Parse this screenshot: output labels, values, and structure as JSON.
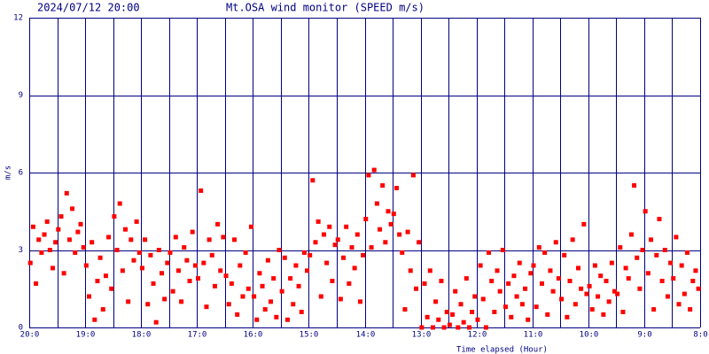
{
  "chart_data": {
    "type": "scatter",
    "timestamp": "2024/07/12 20:00",
    "title": "Mt.OSA wind monitor (SPEED m/s)",
    "x_label": "Time elapsed (Hour)",
    "y_label": "m/s",
    "color": "#ff0000",
    "grid": true,
    "xlim": [
      0,
      12
    ],
    "xticks": [
      {
        "value": 0,
        "label": "20:0"
      },
      {
        "value": 1,
        "label": "19:0"
      },
      {
        "value": 2,
        "label": "18:0"
      },
      {
        "value": 3,
        "label": "17:0"
      },
      {
        "value": 4,
        "label": "16:0"
      },
      {
        "value": 5,
        "label": "15:0"
      },
      {
        "value": 6,
        "label": "14:0"
      },
      {
        "value": 7,
        "label": "13:0"
      },
      {
        "value": 8,
        "label": "12:0"
      },
      {
        "value": 9,
        "label": "11:0"
      },
      {
        "value": 10,
        "label": "10:0"
      },
      {
        "value": 11,
        "label": "9:0"
      },
      {
        "value": 12,
        "label": "8:0"
      }
    ],
    "xgrid": [
      0.5,
      1.5,
      2.5,
      3.5,
      4.5,
      5.5,
      6.5,
      7.5,
      8.5,
      9.5,
      10.5,
      11.5
    ],
    "ylim": [
      0,
      12
    ],
    "yticks": [
      0,
      3,
      6,
      9,
      12
    ],
    "x": [
      0.02,
      0.07,
      0.12,
      0.17,
      0.22,
      0.27,
      0.32,
      0.37,
      0.42,
      0.47,
      0.52,
      0.57,
      0.62,
      0.67,
      0.72,
      0.77,
      0.82,
      0.87,
      0.92,
      0.97,
      1.02,
      1.07,
      1.12,
      1.17,
      1.22,
      1.27,
      1.32,
      1.37,
      1.42,
      1.47,
      1.52,
      1.57,
      1.62,
      1.67,
      1.72,
      1.77,
      1.82,
      1.87,
      1.92,
      1.97,
      2.02,
      2.07,
      2.12,
      2.17,
      2.22,
      2.27,
      2.32,
      2.37,
      2.42,
      2.47,
      2.52,
      2.57,
      2.62,
      2.67,
      2.72,
      2.77,
      2.82,
      2.87,
      2.92,
      2.97,
      3.02,
      3.07,
      3.12,
      3.17,
      3.22,
      3.27,
      3.32,
      3.37,
      3.42,
      3.47,
      3.52,
      3.57,
      3.62,
      3.67,
      3.72,
      3.77,
      3.82,
      3.87,
      3.92,
      3.97,
      4.02,
      4.07,
      4.12,
      4.17,
      4.22,
      4.27,
      4.32,
      4.37,
      4.42,
      4.47,
      4.52,
      4.57,
      4.62,
      4.67,
      4.72,
      4.77,
      4.82,
      4.87,
      4.92,
      4.97,
      5.02,
      5.07,
      5.12,
      5.17,
      5.22,
      5.27,
      5.32,
      5.37,
      5.42,
      5.47,
      5.52,
      5.57,
      5.62,
      5.67,
      5.72,
      5.77,
      5.82,
      5.87,
      5.92,
      5.97,
      6.02,
      6.07,
      6.12,
      6.17,
      6.22,
      6.27,
      6.32,
      6.37,
      6.42,
      6.47,
      6.52,
      6.57,
      6.62,
      6.67,
      6.72,
      6.77,
      6.82,
      6.87,
      6.92,
      6.97,
      7.02,
      7.07,
      7.12,
      7.17,
      7.22,
      7.27,
      7.32,
      7.37,
      7.42,
      7.47,
      7.52,
      7.57,
      7.62,
      7.67,
      7.72,
      7.77,
      7.82,
      7.87,
      7.92,
      7.97,
      8.02,
      8.07,
      8.12,
      8.17,
      8.22,
      8.27,
      8.32,
      8.37,
      8.42,
      8.47,
      8.52,
      8.57,
      8.62,
      8.67,
      8.72,
      8.77,
      8.82,
      8.87,
      8.92,
      8.97,
      9.02,
      9.07,
      9.12,
      9.17,
      9.22,
      9.27,
      9.32,
      9.37,
      9.42,
      9.47,
      9.52,
      9.57,
      9.62,
      9.67,
      9.72,
      9.77,
      9.82,
      9.87,
      9.92,
      9.97,
      10.02,
      10.07,
      10.12,
      10.17,
      10.22,
      10.27,
      10.32,
      10.37,
      10.42,
      10.47,
      10.52,
      10.57,
      10.62,
      10.67,
      10.72,
      10.77,
      10.82,
      10.87,
      10.92,
      10.97,
      11.02,
      11.07,
      11.12,
      11.17,
      11.22,
      11.27,
      11.32,
      11.37,
      11.42,
      11.47,
      11.52,
      11.57,
      11.62,
      11.67,
      11.72,
      11.77,
      11.82,
      11.87,
      11.92,
      11.97
    ],
    "values": [
      2.5,
      3.9,
      1.7,
      3.4,
      2.9,
      3.6,
      4.1,
      3.0,
      2.3,
      3.3,
      3.8,
      4.3,
      2.1,
      5.2,
      3.4,
      4.6,
      2.9,
      3.7,
      4.0,
      3.1,
      2.4,
      1.2,
      3.3,
      0.3,
      1.8,
      2.7,
      0.7,
      2.0,
      3.5,
      1.5,
      4.3,
      3.0,
      4.8,
      2.2,
      3.8,
      1.0,
      3.4,
      2.6,
      4.1,
      2.9,
      2.3,
      3.4,
      0.9,
      2.8,
      1.7,
      0.2,
      3.0,
      2.1,
      1.1,
      2.5,
      2.9,
      1.4,
      3.5,
      2.2,
      1.0,
      3.1,
      2.6,
      1.8,
      3.7,
      2.4,
      1.9,
      5.3,
      2.5,
      0.8,
      3.4,
      2.8,
      1.6,
      4.0,
      2.2,
      3.5,
      2.0,
      0.9,
      1.7,
      3.4,
      0.5,
      2.4,
      1.2,
      2.9,
      1.5,
      3.9,
      1.2,
      0.3,
      2.1,
      1.6,
      0.7,
      2.6,
      1.0,
      1.9,
      0.4,
      3.0,
      1.4,
      2.7,
      0.3,
      1.9,
      0.9,
      2.4,
      1.6,
      0.6,
      2.9,
      2.2,
      2.8,
      5.7,
      3.3,
      4.1,
      1.2,
      3.6,
      2.5,
      3.9,
      1.8,
      3.2,
      3.4,
      1.1,
      2.7,
      3.9,
      1.7,
      3.1,
      2.3,
      3.6,
      1.0,
      2.8,
      4.2,
      5.9,
      3.1,
      6.1,
      4.8,
      3.8,
      5.5,
      3.3,
      4.5,
      4.0,
      4.4,
      5.4,
      3.6,
      2.9,
      0.7,
      3.7,
      2.2,
      5.9,
      1.5,
      3.3,
      0.0,
      1.7,
      0.4,
      2.2,
      0.0,
      1.0,
      0.3,
      1.8,
      0.0,
      0.6,
      0.1,
      0.5,
      1.4,
      0.0,
      0.9,
      0.2,
      1.9,
      0.0,
      0.6,
      1.2,
      0.3,
      2.4,
      1.1,
      0.0,
      2.9,
      1.8,
      0.6,
      2.2,
      1.4,
      3.0,
      0.8,
      1.7,
      0.4,
      2.0,
      1.2,
      2.5,
      0.9,
      1.5,
      0.3,
      2.1,
      2.4,
      0.8,
      3.1,
      1.7,
      2.9,
      0.5,
      2.2,
      1.4,
      3.3,
      1.9,
      1.1,
      2.8,
      0.4,
      1.8,
      3.4,
      0.9,
      2.3,
      1.5,
      4.0,
      1.3,
      1.6,
      0.7,
      2.4,
      1.2,
      2.0,
      0.5,
      1.8,
      1.0,
      2.5,
      1.4,
      1.3,
      3.1,
      0.6,
      2.3,
      1.9,
      3.6,
      5.5,
      2.7,
      1.5,
      3.0,
      4.5,
      2.1,
      3.4,
      0.7,
      2.8,
      4.2,
      1.8,
      3.0,
      1.2,
      2.5,
      1.9,
      3.5,
      0.9,
      2.4,
      1.3,
      2.9,
      0.7,
      1.8,
      2.2,
      1.5
    ]
  }
}
